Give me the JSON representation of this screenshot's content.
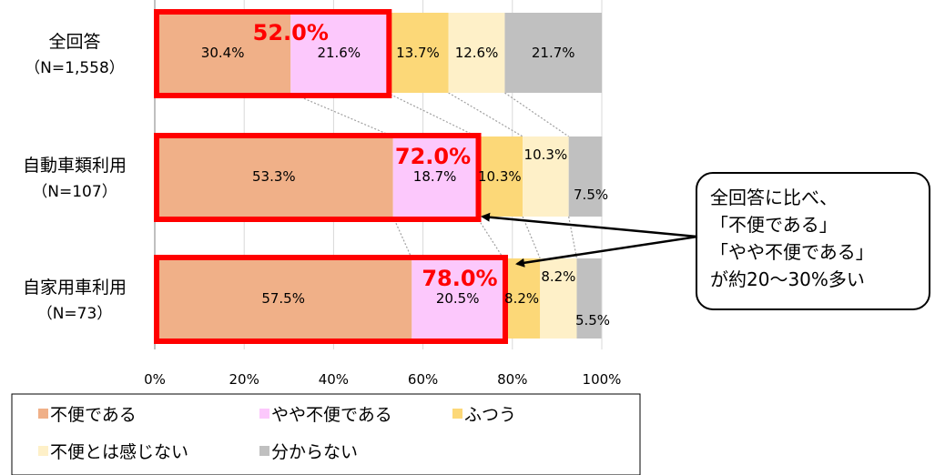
{
  "chart_data": {
    "type": "bar",
    "orientation": "horizontal",
    "stacked": true,
    "categories": [
      {
        "label": "全回答",
        "sublabel": "（N=1,558）"
      },
      {
        "label": "自動車類利用",
        "sublabel": "（N=107）"
      },
      {
        "label": "自家用車利用",
        "sublabel": "（N=73）"
      }
    ],
    "series": [
      {
        "name": "不便である",
        "color": "#f0b088",
        "values": [
          30.4,
          53.3,
          57.5
        ],
        "labels": [
          "30.4%",
          "53.3%",
          "57.5%"
        ]
      },
      {
        "name": "やや不便である",
        "color": "#fcc8fc",
        "values": [
          21.6,
          18.7,
          20.5
        ],
        "labels": [
          "21.6%",
          "18.7%",
          "20.5%"
        ]
      },
      {
        "name": "ふつう",
        "color": "#fcd878",
        "values": [
          13.7,
          10.3,
          8.2
        ],
        "labels": [
          "13.7%",
          "10.3%",
          "8.2%"
        ]
      },
      {
        "name": "不便とは感じない",
        "color": "#fef0c8",
        "values": [
          12.6,
          10.3,
          8.2
        ],
        "labels": [
          "12.6%",
          "10.3%",
          "8.2%"
        ]
      },
      {
        "name": "分からない",
        "color": "#c0c0c0",
        "values": [
          21.7,
          7.5,
          5.5
        ],
        "labels": [
          "21.7%",
          "7.5%",
          "5.5%"
        ]
      }
    ],
    "highlight_totals": [
      "52.0%",
      "72.0%",
      "78.0%"
    ],
    "x_ticks": [
      "0%",
      "20%",
      "40%",
      "60%",
      "80%",
      "100%"
    ],
    "xlim": [
      0,
      100
    ],
    "grid": true,
    "legend_position": "bottom",
    "callout": {
      "lines": [
        "全回答に比べ、",
        "「不便である」",
        "「やや不便である」",
        "が約20～30%多い"
      ]
    },
    "colors": {
      "highlight": "#ff0000",
      "grid": "#d9d9d9",
      "connector": "#a0a0a0"
    }
  }
}
